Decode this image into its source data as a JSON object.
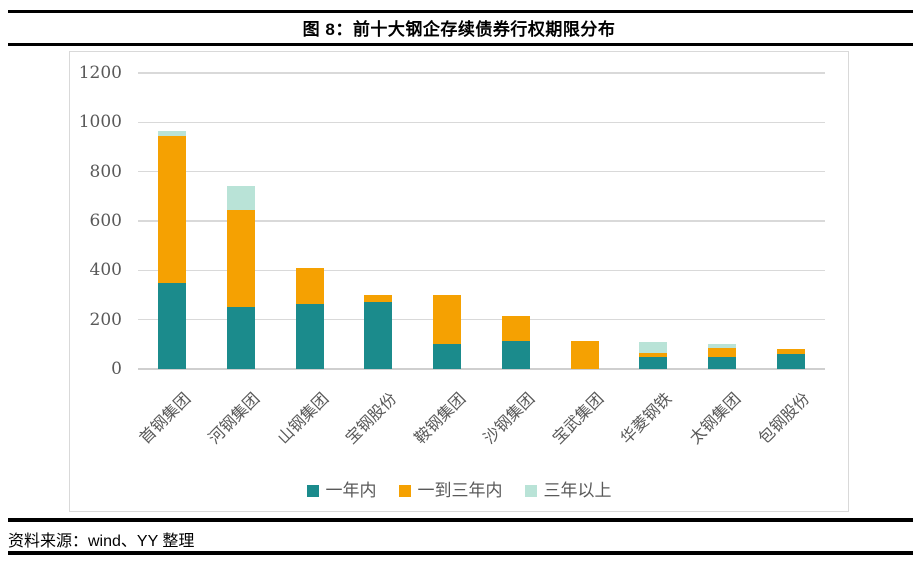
{
  "header": {
    "title": "图 8：前十大钢企存续债券行权期限分布"
  },
  "footer": {
    "source": "资料来源：wind、YY 整理"
  },
  "chart_data": {
    "type": "bar",
    "stacked": true,
    "title": "图 8：前十大钢企存续债券行权期限分布",
    "categories": [
      "首钢集团",
      "河钢集团",
      "山钢集团",
      "宝钢股份",
      "鞍钢集团",
      "沙钢集团",
      "宝武集团",
      "华菱钢铁",
      "太钢集团",
      "包钢股份"
    ],
    "series": [
      {
        "name": "一年内",
        "color": "#1B8B8C",
        "values": [
          350,
          250,
          265,
          270,
          100,
          115,
          0,
          50,
          50,
          60
        ]
      },
      {
        "name": "一到三年内",
        "color": "#F5A102",
        "values": [
          595,
          395,
          145,
          30,
          200,
          100,
          115,
          15,
          35,
          20
        ]
      },
      {
        "name": "三年以上",
        "color": "#B9E3D7",
        "values": [
          20,
          95,
          0,
          0,
          0,
          0,
          0,
          45,
          15,
          0
        ]
      }
    ],
    "totals": [
      965,
      740,
      410,
      300,
      300,
      215,
      115,
      110,
      100,
      80
    ],
    "xlabel": "",
    "ylabel": "",
    "ylim": [
      0,
      1200
    ],
    "yticks": [
      0,
      200,
      400,
      600,
      800,
      1000,
      1200
    ],
    "grid": true,
    "legend_position": "bottom",
    "gridline_color": "#D9D9D9",
    "axis_text_color": "#595959"
  }
}
